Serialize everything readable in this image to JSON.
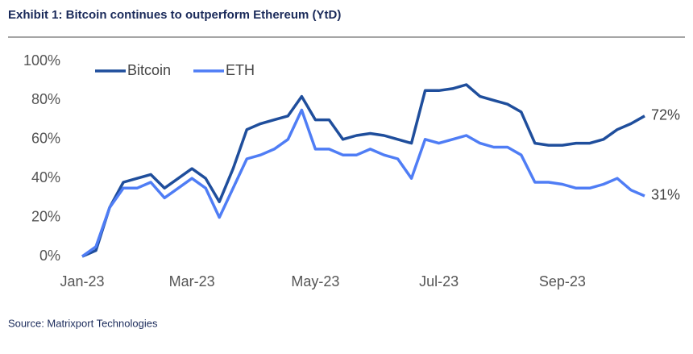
{
  "chart_data": {
    "type": "line",
    "title": "Exhibit 1: Bitcoin continues to outperform Ethereum (YtD)",
    "source": "Source: Matrixport Technologies",
    "categories": [
      "Jan-23",
      null,
      null,
      null,
      null,
      null,
      null,
      null,
      "Mar-23",
      null,
      null,
      null,
      null,
      null,
      null,
      null,
      null,
      "May-23",
      null,
      null,
      null,
      null,
      null,
      null,
      null,
      null,
      "Jul-23",
      null,
      null,
      null,
      null,
      null,
      null,
      null,
      null,
      "Sep-23",
      null,
      null,
      null,
      null,
      null,
      null
    ],
    "series": [
      {
        "name": "Bitcoin",
        "color": "#1f4e9c",
        "values": [
          0,
          3,
          25,
          38,
          40,
          42,
          35,
          40,
          45,
          40,
          28,
          45,
          65,
          68,
          70,
          72,
          82,
          70,
          70,
          60,
          62,
          63,
          62,
          60,
          58,
          85,
          85,
          86,
          88,
          82,
          80,
          78,
          74,
          58,
          57,
          57,
          58,
          58,
          60,
          65,
          68,
          72
        ],
        "value_labels": [
          null,
          null,
          null,
          null,
          null,
          null,
          null,
          null,
          null,
          null,
          null,
          null,
          null,
          null,
          null,
          null,
          null,
          null,
          null,
          null,
          null,
          null,
          null,
          null,
          null,
          null,
          null,
          null,
          null,
          null,
          null,
          null,
          null,
          null,
          null,
          null,
          null,
          null,
          null,
          null,
          null,
          "72%"
        ]
      },
      {
        "name": "ETH",
        "color": "#4f7df5",
        "values": [
          0,
          5,
          25,
          35,
          35,
          38,
          30,
          35,
          40,
          35,
          20,
          35,
          50,
          52,
          55,
          60,
          75,
          55,
          55,
          52,
          52,
          55,
          52,
          50,
          40,
          60,
          58,
          60,
          62,
          58,
          56,
          56,
          52,
          38,
          38,
          37,
          35,
          35,
          37,
          40,
          34,
          31
        ],
        "value_labels": [
          null,
          null,
          null,
          null,
          null,
          null,
          null,
          null,
          null,
          null,
          null,
          null,
          null,
          null,
          null,
          null,
          null,
          null,
          null,
          null,
          null,
          null,
          null,
          null,
          null,
          null,
          null,
          null,
          null,
          null,
          null,
          null,
          null,
          null,
          null,
          null,
          null,
          null,
          null,
          null,
          null,
          "31%"
        ]
      }
    ],
    "ylim": [
      0,
      100
    ],
    "yticks": [
      {
        "value": 0,
        "label": "0%"
      },
      {
        "value": 20,
        "label": "20%"
      },
      {
        "value": 40,
        "label": "40%"
      },
      {
        "value": 60,
        "label": "60%"
      },
      {
        "value": 80,
        "label": "80%"
      },
      {
        "value": 100,
        "label": "100%"
      }
    ],
    "grid": false,
    "legend": "top-left"
  }
}
